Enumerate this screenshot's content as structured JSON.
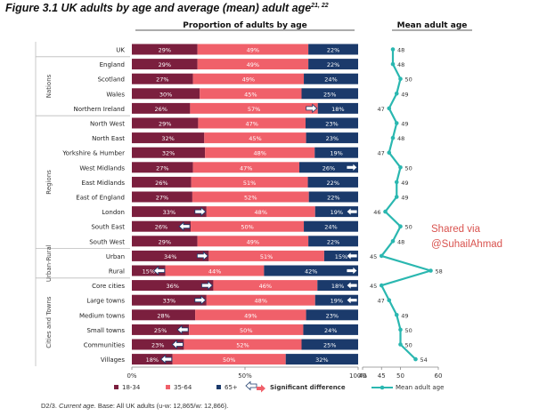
{
  "figure": {
    "title": "Figure 3.1 UK adults by age and average (mean) adult age",
    "title_sup": "21, 22",
    "footnote_prefix": "D2/3.",
    "footnote_italic": "Current age.",
    "footnote_rest": " Base: All UK adults (u-w: 12,865/w: 12,866)."
  },
  "watermark": {
    "line1": "Shared via",
    "line2": "@SuhailAhmad"
  },
  "colors": {
    "age_18_34": "#7b1f3e",
    "age_35_64": "#f0606a",
    "age_65_plus": "#1b3a6b",
    "mean_line": "#2ab7b0",
    "arrow_fill": "#ffffff"
  },
  "chart_data": [
    {
      "type": "bar",
      "stacked": true,
      "orientation": "horizontal",
      "title": "Proportion of adults by age",
      "categories": [
        "UK",
        "England",
        "Scotland",
        "Wales",
        "Northern Ireland",
        "North West",
        "North East",
        "Yorkshire & Humber",
        "West Midlands",
        "East Midlands",
        "East of England",
        "London",
        "South East",
        "South West",
        "Urban",
        "Rural",
        "Core cities",
        "Large towns",
        "Medium towns",
        "Small towns",
        "Communities",
        "Villages"
      ],
      "groups": [
        {
          "label": "Nations",
          "from": 1,
          "to": 4
        },
        {
          "label": "Regions",
          "from": 5,
          "to": 13
        },
        {
          "label": "Urban-Rural",
          "from": 14,
          "to": 15
        },
        {
          "label": "Cities and Towns",
          "from": 16,
          "to": 21
        }
      ],
      "series": [
        {
          "name": "18-34",
          "color": "#7b1f3e",
          "values": [
            29,
            29,
            27,
            30,
            26,
            29,
            32,
            32,
            27,
            26,
            27,
            33,
            26,
            29,
            34,
            15,
            36,
            33,
            28,
            25,
            23,
            18
          ]
        },
        {
          "name": "35-64",
          "color": "#f0606a",
          "values": [
            49,
            49,
            49,
            45,
            57,
            47,
            45,
            48,
            47,
            51,
            52,
            48,
            50,
            49,
            51,
            44,
            46,
            48,
            49,
            50,
            52,
            50
          ]
        },
        {
          "name": "65+",
          "color": "#1b3a6b",
          "values": [
            22,
            22,
            24,
            25,
            18,
            23,
            23,
            19,
            26,
            22,
            22,
            19,
            24,
            22,
            15,
            42,
            18,
            19,
            23,
            24,
            25,
            32
          ]
        }
      ],
      "significance_arrows": [
        {
          "row": 4,
          "segment": 1,
          "dir": "up"
        },
        {
          "row": 8,
          "segment": 2,
          "dir": "up"
        },
        {
          "row": 11,
          "segment": 0,
          "dir": "up"
        },
        {
          "row": 11,
          "segment": 2,
          "dir": "down"
        },
        {
          "row": 12,
          "segment": 0,
          "dir": "down"
        },
        {
          "row": 14,
          "segment": 0,
          "dir": "up"
        },
        {
          "row": 14,
          "segment": 2,
          "dir": "down"
        },
        {
          "row": 15,
          "segment": 0,
          "dir": "down"
        },
        {
          "row": 15,
          "segment": 2,
          "dir": "up"
        },
        {
          "row": 16,
          "segment": 0,
          "dir": "up"
        },
        {
          "row": 16,
          "segment": 2,
          "dir": "down"
        },
        {
          "row": 17,
          "segment": 0,
          "dir": "up"
        },
        {
          "row": 17,
          "segment": 2,
          "dir": "down"
        },
        {
          "row": 19,
          "segment": 0,
          "dir": "down"
        },
        {
          "row": 20,
          "segment": 0,
          "dir": "down"
        },
        {
          "row": 21,
          "segment": 0,
          "dir": "down"
        }
      ],
      "xlim": [
        0,
        100
      ],
      "xticks": [
        "0%",
        "50%",
        "100%"
      ],
      "legend": [
        {
          "name": "18-34"
        },
        {
          "name": "35-64"
        },
        {
          "name": "65+"
        },
        {
          "name": "Significant difference",
          "kind": "arrows"
        }
      ],
      "legend_position": "bottom",
      "grid": false
    },
    {
      "type": "line",
      "orientation": "vertical",
      "title": "Mean adult age",
      "categories": [
        "UK",
        "England",
        "Scotland",
        "Wales",
        "Northern Ireland",
        "North West",
        "North East",
        "Yorkshire & Humber",
        "West Midlands",
        "East Midlands",
        "East of England",
        "London",
        "South East",
        "South West",
        "Urban",
        "Rural",
        "Core cities",
        "Large towns",
        "Medium towns",
        "Small towns",
        "Communities",
        "Villages"
      ],
      "series": [
        {
          "name": "Mean adult age",
          "color": "#2ab7b0",
          "values": [
            48,
            48,
            50,
            49,
            47,
            49,
            48,
            47,
            50,
            49,
            49,
            46,
            50,
            48,
            45,
            58,
            45,
            47,
            49,
            50,
            50,
            54
          ]
        }
      ],
      "xlim": [
        40,
        60
      ],
      "xticks": [
        "40",
        "45",
        "50",
        "60"
      ],
      "legend_position": "bottom",
      "grid": false
    }
  ]
}
